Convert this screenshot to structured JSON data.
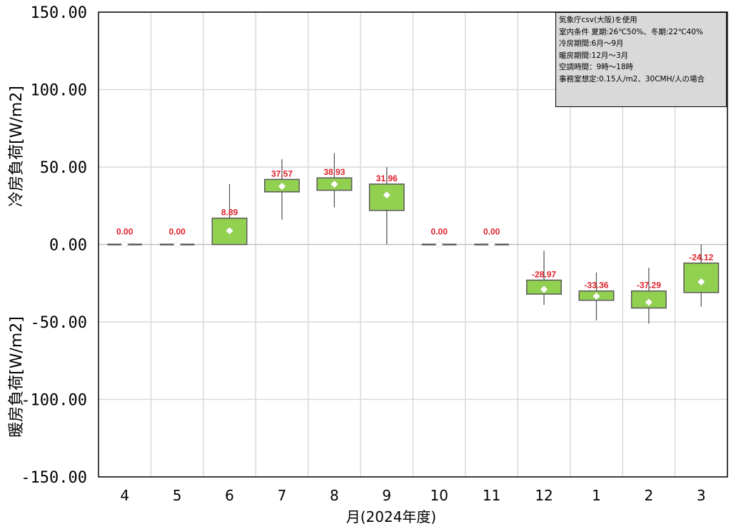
{
  "chart_data": {
    "type": "boxplot",
    "xlabel": "月(2024年度)",
    "ylabel_top": "冷房負荷[W/m2]",
    "ylabel_bottom": "暖房負荷[W/m2]",
    "ylim": [
      -150,
      150
    ],
    "yticks": [
      150,
      100,
      50,
      0,
      -50,
      -100,
      -150
    ],
    "ytick_labels": [
      "150.00",
      "100.00",
      "50.00",
      "0.00",
      "-50.00",
      "-100.00",
      "-150.00"
    ],
    "grid": true,
    "categories": [
      "4",
      "5",
      "6",
      "7",
      "8",
      "9",
      "10",
      "11",
      "12",
      "1",
      "2",
      "3"
    ],
    "boxes": [
      {
        "month": "4",
        "min": 0,
        "q1": 0,
        "q3": 0,
        "max": 0,
        "mean": 0.0,
        "mean_label": "0.00"
      },
      {
        "month": "5",
        "min": 0,
        "q1": 0,
        "q3": 0,
        "max": 0,
        "mean": 0.0,
        "mean_label": "0.00"
      },
      {
        "month": "6",
        "min": 0,
        "q1": 0,
        "q3": 17,
        "max": 39,
        "mean": 8.89,
        "mean_label": "8.89"
      },
      {
        "month": "7",
        "min": 16,
        "q1": 34,
        "q3": 42,
        "max": 55,
        "mean": 37.57,
        "mean_label": "37.57"
      },
      {
        "month": "8",
        "min": 24,
        "q1": 35,
        "q3": 43,
        "max": 59,
        "mean": 38.93,
        "mean_label": "38.93"
      },
      {
        "month": "9",
        "min": 0,
        "q1": 22,
        "q3": 39,
        "max": 50,
        "mean": 31.96,
        "mean_label": "31.96"
      },
      {
        "month": "10",
        "min": 0,
        "q1": 0,
        "q3": 0,
        "max": 0,
        "mean": 0.0,
        "mean_label": "0.00"
      },
      {
        "month": "11",
        "min": 0,
        "q1": 0,
        "q3": 0,
        "max": 0,
        "mean": 0.0,
        "mean_label": "0.00"
      },
      {
        "month": "12",
        "min": -39,
        "q1": -32,
        "q3": -23,
        "max": -4,
        "mean": -28.97,
        "mean_label": "-28.97"
      },
      {
        "month": "1",
        "min": -49,
        "q1": -36,
        "q3": -30,
        "max": -18,
        "mean": -33.36,
        "mean_label": "-33.36"
      },
      {
        "month": "2",
        "min": -51,
        "q1": -41,
        "q3": -30,
        "max": -15,
        "mean": -37.29,
        "mean_label": "-37.29"
      },
      {
        "month": "3",
        "min": -40,
        "q1": -31,
        "q3": -12,
        "max": 0,
        "mean": -24.12,
        "mean_label": "-24.12"
      }
    ],
    "colors": {
      "box_fill": "#92d050",
      "box_stroke": "#595959",
      "whisker": "#595959",
      "mean_marker": "#ffffff",
      "label": "#e0202a",
      "grid": "#d9d9d9",
      "info_bg": "#d9d9d9"
    },
    "annotation_lines": [
      "気象庁csv(大阪)を使用",
      "室内条件 夏期:26℃50%、冬期:22℃40%",
      "冷房期間:6月～9月",
      "暖房期間:12月～3月",
      "空調時間：9時～18時",
      "事務室想定:0.15人/m2、30CMH/人の場合"
    ]
  }
}
